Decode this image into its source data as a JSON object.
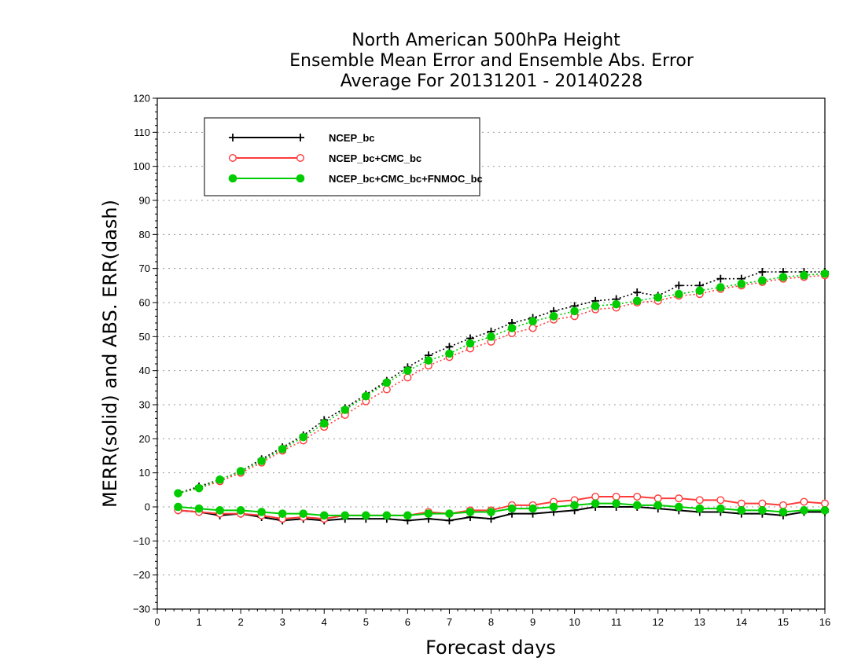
{
  "chart_data": {
    "type": "line",
    "title": [
      "North American 500hPa Height",
      "Ensemble Mean Error and Ensemble Abs. Error",
      "Average For 20131201 - 20140228"
    ],
    "xlabel": "Forecast days",
    "ylabel": "MERR(solid) and ABS. ERR(dash)",
    "xlim": [
      0,
      16
    ],
    "ylim": [
      -30,
      120
    ],
    "xticks": [
      "0",
      "1",
      "2",
      "3",
      "4",
      "5",
      "6",
      "7",
      "8",
      "9",
      "10",
      "11",
      "12",
      "13",
      "14",
      "15",
      "16"
    ],
    "yticks": [
      "−30",
      "−20",
      "−10",
      "0",
      "10",
      "20",
      "30",
      "40",
      "50",
      "60",
      "70",
      "80",
      "90",
      "100",
      "110",
      "120"
    ],
    "grid": "dotted horizontal",
    "legend_position": "top-left",
    "x": [
      0.5,
      1,
      1.5,
      2,
      2.5,
      3,
      3.5,
      4,
      4.5,
      5,
      5.5,
      6,
      6.5,
      7,
      7.5,
      8,
      8.5,
      9,
      9.5,
      10,
      10.5,
      11,
      11.5,
      12,
      12.5,
      13,
      13.5,
      14,
      14.5,
      15,
      15.5,
      16
    ],
    "series": [
      {
        "name": "NCEP_bc",
        "color": "#000000",
        "marker": "plus",
        "merr": [
          -1,
          -1.5,
          -2.5,
          -2,
          -3,
          -4,
          -3.5,
          -4,
          -3.5,
          -3.5,
          -3.5,
          -4,
          -3.5,
          -4,
          -3,
          -3.5,
          -2,
          -2,
          -1.5,
          -1,
          0,
          0,
          0,
          -0.5,
          -1,
          -1.5,
          -1.5,
          -2,
          -2,
          -2.5,
          -1.5,
          -1.5
        ],
        "abs_err": [
          4,
          6,
          8,
          10.5,
          14,
          17.5,
          21,
          25.5,
          29,
          33,
          37,
          41,
          44.5,
          47,
          49.5,
          51.5,
          54,
          55.5,
          57.5,
          59,
          60.5,
          61,
          63,
          62,
          65,
          65,
          67,
          67,
          69,
          69,
          69,
          69
        ]
      },
      {
        "name": "NCEP_bc+CMC_bc",
        "color": "#ff3b3b",
        "marker": "open-circle",
        "merr": [
          -1,
          -1.5,
          -2,
          -2,
          -2.5,
          -3.5,
          -3,
          -3.5,
          -2.5,
          -2.5,
          -2.5,
          -2.5,
          -1.5,
          -2,
          -1,
          -1,
          0.5,
          0.5,
          1.5,
          2,
          3,
          3,
          3,
          2.5,
          2.5,
          2,
          2,
          1,
          1,
          0.5,
          1.5,
          1
        ],
        "abs_err": [
          4,
          5.5,
          7.5,
          10,
          13,
          16.5,
          19.5,
          23.5,
          27,
          31,
          34.5,
          38,
          41.5,
          44,
          46.5,
          48.5,
          51,
          52.5,
          55,
          56,
          58,
          58.5,
          60,
          60.5,
          62,
          62.5,
          64,
          65,
          66,
          67,
          67.5,
          68
        ]
      },
      {
        "name": "NCEP_bc+CMC_bc+FNMOC_bc",
        "color": "#00cc00",
        "marker": "filled-circle",
        "merr": [
          0,
          -0.5,
          -1,
          -1,
          -1.5,
          -2,
          -2,
          -2.5,
          -2.5,
          -2.5,
          -2.5,
          -2.5,
          -2,
          -2,
          -1.5,
          -1.5,
          -0.5,
          -0.5,
          0,
          0.5,
          1,
          1,
          0.5,
          0.5,
          0,
          -0.5,
          -0.5,
          -1,
          -1,
          -1.5,
          -1,
          -1
        ],
        "abs_err": [
          4,
          5.5,
          8,
          10.5,
          13.5,
          17,
          20.5,
          24.5,
          28.5,
          32.5,
          36.5,
          40,
          43,
          45,
          48,
          50,
          52.5,
          54.5,
          56,
          57.5,
          59,
          59.5,
          60.5,
          61.5,
          62.5,
          63.5,
          64.5,
          65.5,
          66.5,
          67.5,
          68,
          68.5
        ]
      }
    ]
  }
}
